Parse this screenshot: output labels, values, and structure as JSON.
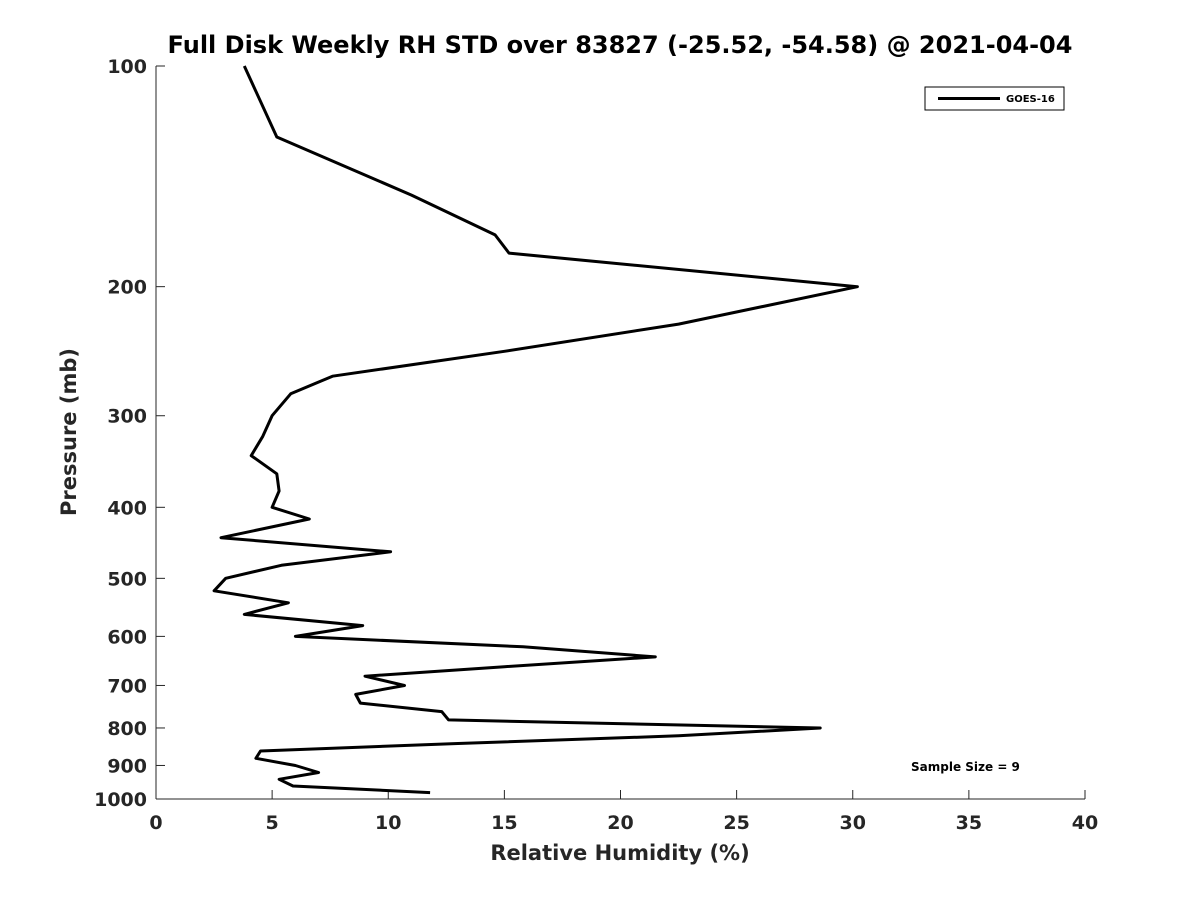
{
  "chart_data": {
    "type": "line",
    "title": "Full Disk Weekly RH STD over 83827 (-25.52, -54.58) @ 2021-04-04",
    "xlabel": "Relative Humidity (%)",
    "ylabel": "Pressure (mb)",
    "xlim": [
      0,
      40
    ],
    "ylim": [
      100,
      1000
    ],
    "y_scale": "log",
    "y_reversed": true,
    "grid": false,
    "x_ticks": [
      0,
      5,
      10,
      15,
      20,
      25,
      30,
      35,
      40
    ],
    "x_tick_labels": [
      "0",
      "5",
      "10",
      "15",
      "20",
      "25",
      "30",
      "35",
      "40"
    ],
    "y_ticks": [
      100,
      200,
      300,
      400,
      500,
      600,
      700,
      800,
      900,
      1000
    ],
    "y_tick_labels": [
      "100",
      "200",
      "300",
      "400",
      "500",
      "600",
      "700",
      "800",
      "900",
      "1000"
    ],
    "legend_position": "top-right",
    "series": [
      {
        "name": "GOES-16",
        "color": "#000000",
        "points": [
          [
            3.8,
            100
          ],
          [
            5.2,
            125
          ],
          [
            11.0,
            150
          ],
          [
            14.6,
            170
          ],
          [
            15.2,
            180
          ],
          [
            30.2,
            200
          ],
          [
            22.5,
            225
          ],
          [
            15.0,
            245
          ],
          [
            7.6,
            265
          ],
          [
            5.8,
            280
          ],
          [
            5.0,
            300
          ],
          [
            4.6,
            320
          ],
          [
            4.1,
            340
          ],
          [
            5.2,
            360
          ],
          [
            5.3,
            380
          ],
          [
            5.0,
            400
          ],
          [
            6.6,
            415
          ],
          [
            2.8,
            440
          ],
          [
            10.1,
            460
          ],
          [
            5.4,
            480
          ],
          [
            3.0,
            500
          ],
          [
            2.5,
            520
          ],
          [
            5.7,
            540
          ],
          [
            3.8,
            560
          ],
          [
            8.9,
            580
          ],
          [
            6.0,
            600
          ],
          [
            15.8,
            620
          ],
          [
            21.5,
            640
          ],
          [
            15.0,
            660
          ],
          [
            9.0,
            680
          ],
          [
            10.7,
            700
          ],
          [
            8.6,
            720
          ],
          [
            8.8,
            740
          ],
          [
            12.3,
            760
          ],
          [
            12.6,
            780
          ],
          [
            28.6,
            800
          ],
          [
            22.5,
            820
          ],
          [
            13.0,
            840
          ],
          [
            4.5,
            860
          ],
          [
            4.3,
            880
          ],
          [
            6.0,
            900
          ],
          [
            7.0,
            920
          ],
          [
            5.3,
            940
          ],
          [
            5.9,
            960
          ],
          [
            11.8,
            980
          ]
        ]
      }
    ],
    "annotations": [
      {
        "text": "Sample Size = 9",
        "position": "bottom-right"
      }
    ]
  }
}
